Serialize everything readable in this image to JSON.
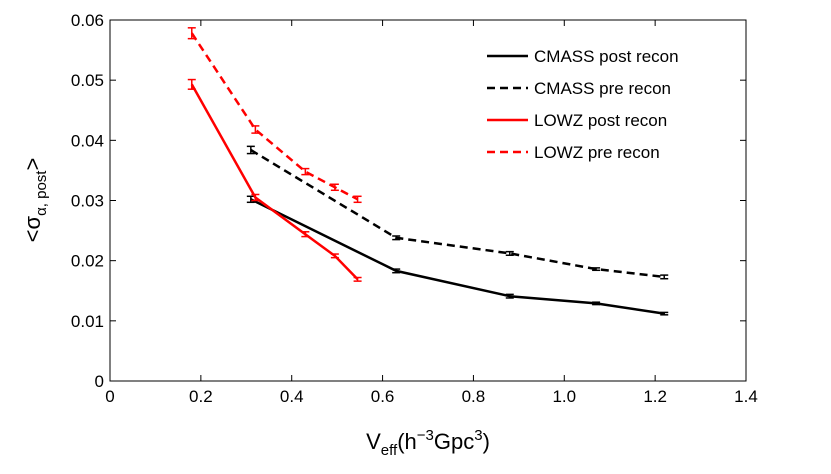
{
  "chart_data": {
    "type": "line",
    "title": "",
    "xlabel": {
      "main": "V",
      "sub": "eff",
      "mid": "(h",
      "sup1": "−3",
      "mid2": "Gpc",
      "sup2": "3",
      "end": ")"
    },
    "ylabel": {
      "main": "<σ",
      "sub": "α, post",
      "end": ">"
    },
    "xlim": [
      0,
      1.4
    ],
    "ylim": [
      0,
      0.06
    ],
    "xticks": [
      "0",
      "0.2",
      "0.4",
      "0.6",
      "0.8",
      "1.0",
      "1.2",
      "1.4"
    ],
    "yticks": [
      "0",
      "0.01",
      "0.02",
      "0.03",
      "0.04",
      "0.05",
      "0.06"
    ],
    "xtick_values": [
      0,
      0.2,
      0.4,
      0.6,
      0.8,
      1.0,
      1.2,
      1.4
    ],
    "ytick_values": [
      0,
      0.01,
      0.02,
      0.03,
      0.04,
      0.05,
      0.06
    ],
    "grid": false,
    "legend_position": "top-right",
    "series": [
      {
        "name": "CMASS post recon",
        "color": "#000000",
        "dash": "solid",
        "x": [
          0.31,
          0.63,
          0.88,
          1.07,
          1.22
        ],
        "y": [
          0.0302,
          0.0183,
          0.0141,
          0.0129,
          0.0112
        ],
        "err": [
          0.0005,
          0.0003,
          0.0003,
          0.0002,
          0.0002
        ]
      },
      {
        "name": "CMASS pre recon",
        "color": "#000000",
        "dash": "dashed",
        "x": [
          0.31,
          0.63,
          0.88,
          1.07,
          1.22
        ],
        "y": [
          0.0384,
          0.0238,
          0.0212,
          0.0186,
          0.0173
        ],
        "err": [
          0.0006,
          0.0003,
          0.0003,
          0.0002,
          0.0003
        ]
      },
      {
        "name": "LOWZ post recon",
        "color": "#ff0000",
        "dash": "solid",
        "x": [
          0.18,
          0.32,
          0.43,
          0.495,
          0.545
        ],
        "y": [
          0.0493,
          0.0305,
          0.0244,
          0.0208,
          0.0169
        ],
        "err": [
          0.0008,
          0.0005,
          0.0004,
          0.0003,
          0.0003
        ]
      },
      {
        "name": "LOWZ pre recon",
        "color": "#ff0000",
        "dash": "dashed",
        "x": [
          0.18,
          0.32,
          0.43,
          0.495,
          0.545
        ],
        "y": [
          0.0578,
          0.0418,
          0.0348,
          0.0322,
          0.0302
        ],
        "err": [
          0.0009,
          0.0006,
          0.0005,
          0.0005,
          0.0005
        ]
      }
    ]
  }
}
